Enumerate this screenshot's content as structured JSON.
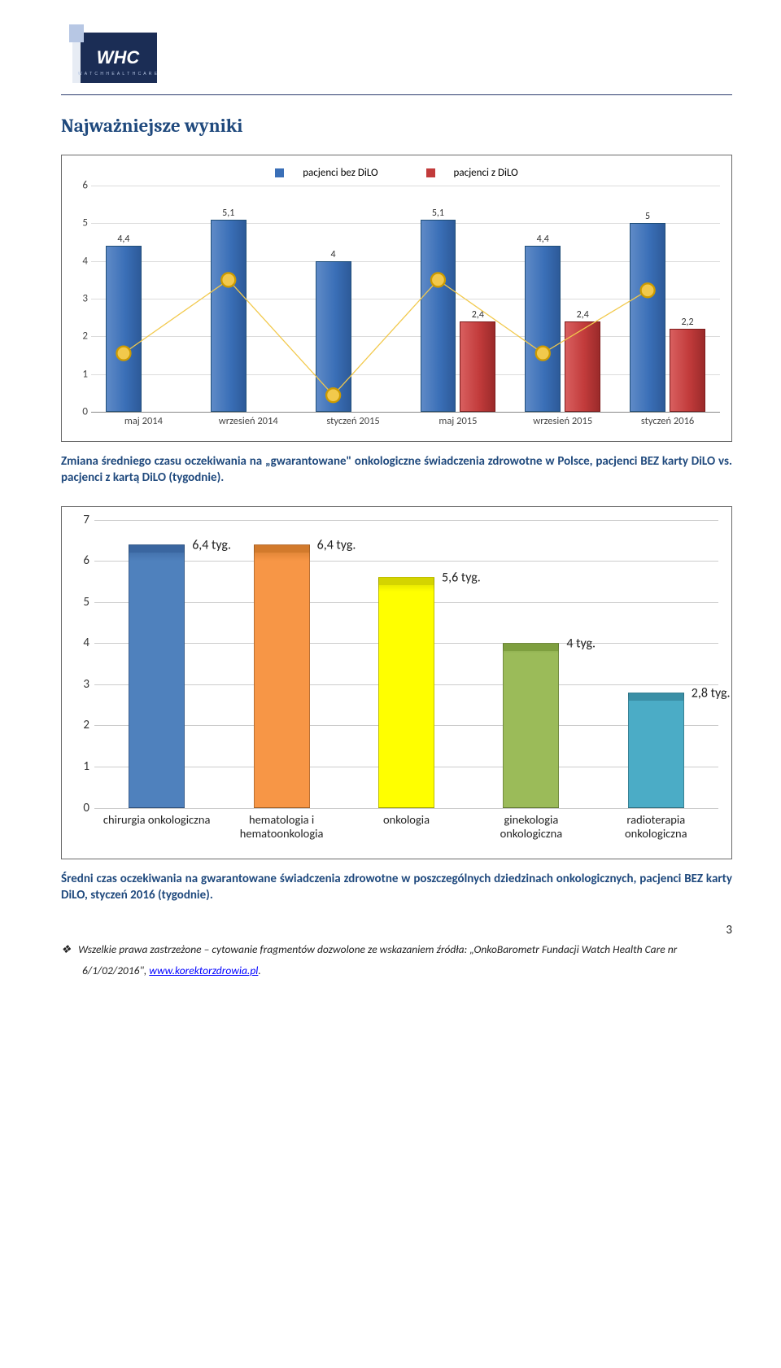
{
  "section_title": "Najważniejsze wyniki",
  "chart1": {
    "type": "grouped-bar+line",
    "legend": [
      {
        "label": "pacjenci bez DiLO",
        "color": "#3a6fb7"
      },
      {
        "label": "pacjenci z DiLO",
        "color": "#c23b3b"
      }
    ],
    "ylim": [
      0,
      6
    ],
    "yticks": [
      0,
      1,
      2,
      3,
      4,
      5,
      6
    ],
    "grid_color": "#dcdcdc",
    "categories": [
      "maj 2014",
      "wrzesień 2014",
      "styczeń 2015",
      "maj 2015",
      "wrzesień 2015",
      "styczeń 2016"
    ],
    "bar_blue": {
      "fill": "#3a6fb7",
      "edge": "#1f4e79"
    },
    "bar_red": {
      "fill": "#c23b3b",
      "edge": "#7c1b1b"
    },
    "series_blue": [
      4.4,
      5.1,
      4,
      5.1,
      4.4,
      5
    ],
    "labels_blue": [
      "4,4",
      "5,1",
      "4",
      "5,1",
      "4,4",
      "5"
    ],
    "series_red": [
      null,
      null,
      null,
      2.4,
      2.4,
      2.2
    ],
    "labels_red": [
      "",
      "",
      "",
      "2,4",
      "2,4",
      "2,2"
    ],
    "line_color": "#f2c94c",
    "marker_edge": "#cc9a00"
  },
  "caption1": "Zmiana średniego czasu oczekiwania na „gwarantowane\" onkologiczne świadczenia zdrowotne w Polsce, pacjenci BEZ karty DiLO vs. pacjenci z kartą DiLO (tygodnie).",
  "chart2": {
    "type": "bar",
    "ylim": [
      0,
      7
    ],
    "yticks": [
      0,
      1,
      2,
      3,
      4,
      5,
      6,
      7
    ],
    "grid_color": "#cccccc",
    "categories": [
      "chirurgia onkologiczna",
      "hematologia i hematoonkologia",
      "onkologia",
      "ginekologia onkologiczna",
      "radioterapia onkologiczna"
    ],
    "values": [
      6.4,
      6.4,
      5.6,
      4,
      2.8
    ],
    "value_labels": [
      "6,4 tyg.",
      "6,4 tyg.",
      "5,6 tyg.",
      "4 tyg.",
      "2,8 tyg."
    ],
    "bar_colors": [
      "#4f81bd",
      "#f79646",
      "#ffff00",
      "#9bbb59",
      "#4bacc6"
    ],
    "bar_top_shades": [
      "#3a66a0",
      "#d27a2c",
      "#d4d400",
      "#7e9f3f",
      "#3a8fa6"
    ],
    "bar_width": 0.45
  },
  "caption2": "Średni czas oczekiwania na gwarantowane świadczenia zdrowotne w poszczególnych dziedzinach onkologicznych, pacjenci BEZ karty DiLO, styczeń 2016 (tygodnie).",
  "page_number": "3",
  "footer": {
    "text_before": "Wszelkie prawa zastrzeżone – cytowanie fragmentów dozwolone ze wskazaniem źródła: „OnkoBarometr Fundacji Watch Health Care nr 6/1/02/2016\", ",
    "link_text": "www.korektorzdrowia.pl",
    "text_after": "."
  }
}
